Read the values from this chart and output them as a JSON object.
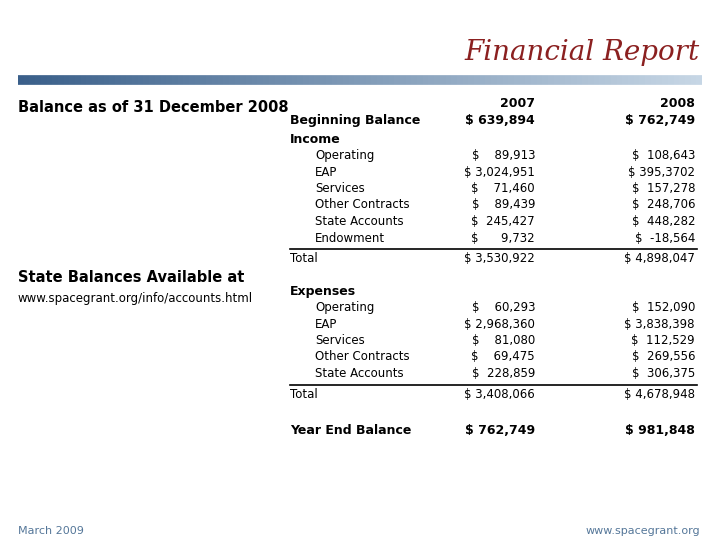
{
  "title": "Financial Report",
  "title_color": "#8B2020",
  "left_heading": "Balance as of 31 December 2008",
  "left_sub1": "State Balances Available at",
  "left_sub2": "www.spacegrant.org/info/accounts.html",
  "footer_left": "March 2009",
  "footer_right": "www.spacegrant.org",
  "col_year1": "2007",
  "col_year2": "2008",
  "beginning_balance_label": "Beginning Balance",
  "beginning_balance_2007": "$ 639,894",
  "beginning_balance_2008": "$ 762,749",
  "income_label": "Income",
  "income_items": [
    [
      "Operating",
      "$    89,913",
      "$  108,643"
    ],
    [
      "EAP",
      "$ 3,024,951",
      "$ 395,3702"
    ],
    [
      "Services",
      "$    71,460",
      "$  157,278"
    ],
    [
      "Other Contracts",
      "$    89,439",
      "$  248,706"
    ],
    [
      "State Accounts",
      "$  245,427",
      "$  448,282"
    ],
    [
      "Endowment",
      "$      9,732",
      "$  -18,564"
    ]
  ],
  "income_total_label": "Total",
  "income_total_2007": "$ 3,530,922",
  "income_total_2008": "$ 4,898,047",
  "expenses_label": "Expenses",
  "expenses_items": [
    [
      "Operating",
      "$    60,293",
      "$  152,090"
    ],
    [
      "EAP",
      "$ 2,968,360",
      "$ 3,838,398"
    ],
    [
      "Services",
      "$    81,080",
      "$  112,529"
    ],
    [
      "Other Contracts",
      "$    69,475",
      "$  269,556"
    ],
    [
      "State Accounts",
      "$  228,859",
      "$  306,375"
    ]
  ],
  "expenses_total_label": "Total",
  "expenses_total_2007": "$ 3,408,066",
  "expenses_total_2008": "$ 4,678,948",
  "year_end_label": "Year End Balance",
  "year_end_2007": "$ 762,749",
  "year_end_2008": "$ 981,848",
  "bg_color": "#ffffff",
  "bar_dark": "#3a5f8a",
  "bar_light": "#d0dce8"
}
